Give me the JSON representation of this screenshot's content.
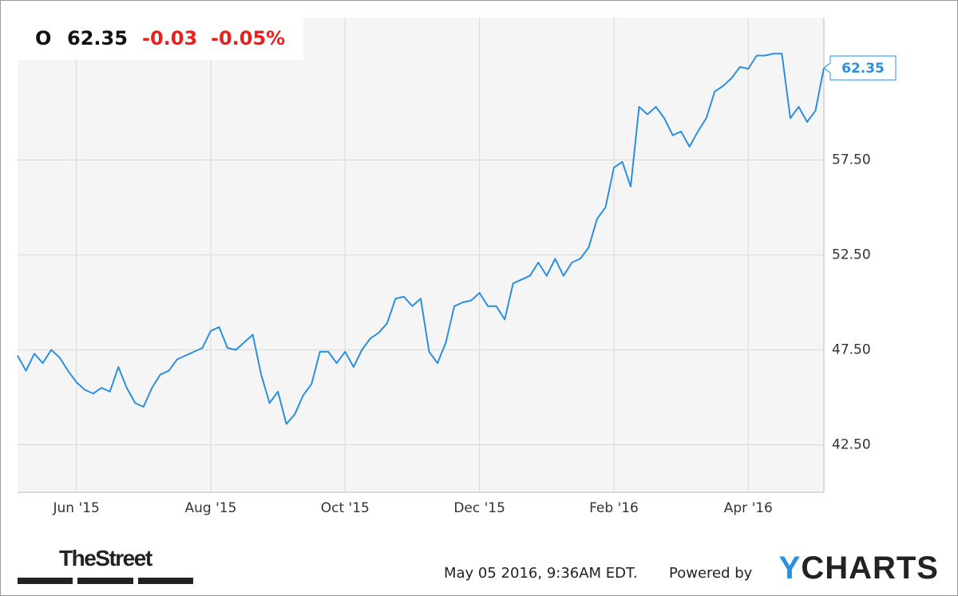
{
  "chart_data": {
    "type": "line",
    "ticker": "O",
    "price": "62.35",
    "change": "-0.03",
    "change_percent": "-0.05%",
    "categories": [
      null,
      null,
      null,
      null,
      null,
      null,
      null,
      "Jun '15",
      null,
      null,
      null,
      null,
      null,
      null,
      null,
      null,
      null,
      null,
      null,
      null,
      null,
      null,
      null,
      "Aug '15",
      null,
      null,
      null,
      null,
      null,
      null,
      null,
      null,
      null,
      null,
      null,
      null,
      null,
      null,
      null,
      "Oct '15",
      null,
      null,
      null,
      null,
      null,
      null,
      null,
      null,
      null,
      null,
      null,
      null,
      null,
      null,
      null,
      "Dec '15",
      null,
      null,
      null,
      null,
      null,
      null,
      null,
      null,
      null,
      null,
      null,
      null,
      null,
      null,
      null,
      "Feb '16",
      null,
      null,
      null,
      null,
      null,
      null,
      null,
      null,
      null,
      null,
      null,
      null,
      null,
      null,
      null,
      "Apr '16",
      null,
      null,
      null,
      null,
      null,
      null,
      null,
      null,
      null
    ],
    "series": [
      {
        "name": "O",
        "color": "#2b8fe0",
        "values": [
          47.2,
          46.4,
          47.3,
          46.8,
          47.5,
          47.1,
          46.4,
          45.8,
          45.4,
          45.2,
          45.5,
          45.3,
          46.6,
          45.5,
          44.7,
          44.5,
          45.5,
          46.2,
          46.4,
          47.0,
          47.2,
          47.4,
          47.6,
          48.5,
          48.7,
          47.6,
          47.5,
          47.9,
          48.3,
          46.2,
          44.7,
          45.3,
          43.6,
          44.1,
          45.1,
          45.7,
          47.4,
          47.4,
          46.8,
          47.4,
          46.6,
          47.5,
          48.1,
          48.4,
          48.9,
          50.2,
          50.3,
          49.8,
          50.2,
          47.4,
          46.8,
          47.9,
          49.8,
          50.0,
          50.1,
          50.5,
          49.8,
          49.8,
          49.1,
          51.0,
          51.2,
          51.4,
          52.1,
          51.4,
          52.3,
          51.4,
          52.1,
          52.3,
          52.9,
          54.4,
          55.0,
          57.1,
          57.4,
          56.1,
          60.3,
          59.9,
          60.3,
          59.7,
          58.8,
          59.0,
          58.2,
          59.0,
          59.7,
          61.1,
          61.4,
          61.8,
          62.4,
          62.3,
          63.0,
          63.0,
          63.1,
          63.1,
          59.7,
          60.3,
          59.5,
          60.1,
          62.35
        ]
      }
    ],
    "ylim": [
      40,
      65
    ],
    "yticks": [
      {
        "value": 42.5,
        "label": "42.50"
      },
      {
        "value": 47.5,
        "label": "47.50"
      },
      {
        "value": 52.5,
        "label": "52.50"
      },
      {
        "value": 57.5,
        "label": "57.50"
      }
    ],
    "grid": true,
    "source_logo": "TheStreet",
    "timestamp": "May 05 2016, 9:36AM EDT.",
    "powered_by": "Powered by",
    "brand": "YCHARTS"
  }
}
